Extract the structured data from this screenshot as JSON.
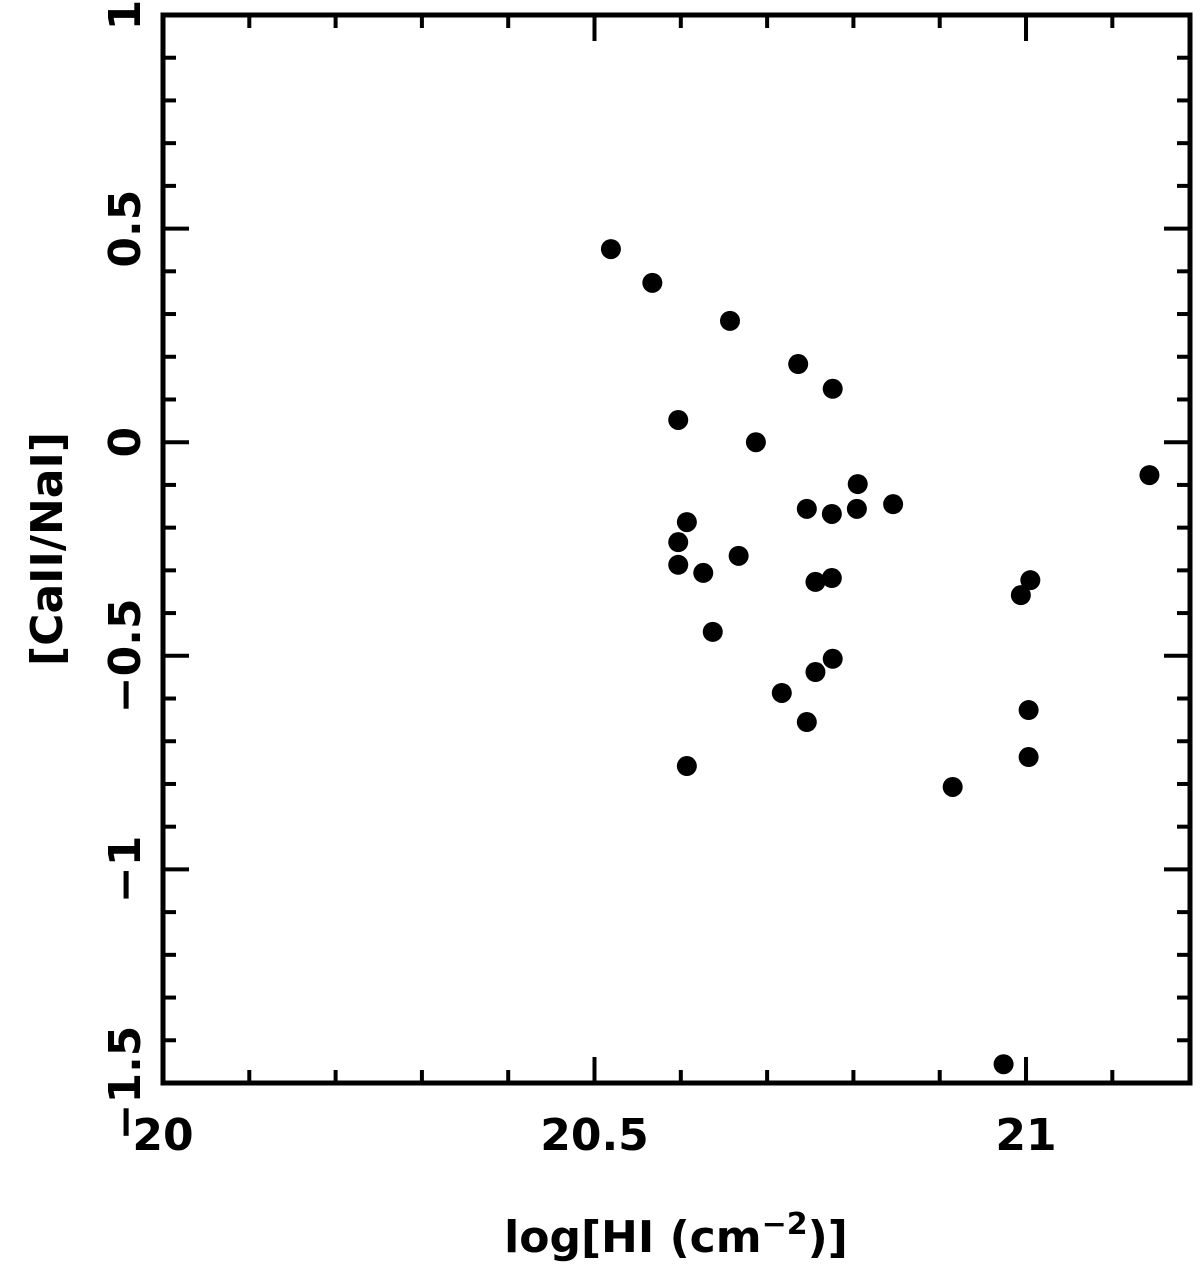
{
  "chart_data": {
    "type": "scatter",
    "xlabel": [
      "log[HI (cm",
      "−2",
      ")]"
    ],
    "ylabel": "[CaII/NaI]",
    "color": "#000000",
    "x": [
      20.519,
      20.567,
      20.657,
      20.736,
      20.776,
      20.597,
      20.687,
      20.805,
      21.143,
      20.746,
      20.775,
      20.804,
      20.846,
      20.607,
      20.597,
      20.597,
      20.667,
      20.626,
      20.756,
      20.775,
      21.005,
      20.994,
      20.637,
      20.776,
      20.756,
      20.717,
      20.746,
      21.003,
      21.003,
      20.607,
      20.915,
      20.974
    ],
    "values": [
      0.452,
      0.373,
      0.284,
      0.183,
      0.125,
      0.052,
      0,
      -0.098,
      -0.077,
      -0.156,
      -0.168,
      -0.156,
      -0.145,
      -0.187,
      -0.234,
      -0.287,
      -0.266,
      -0.306,
      -0.327,
      -0.318,
      -0.323,
      -0.358,
      -0.444,
      -0.507,
      -0.538,
      -0.587,
      -0.655,
      -0.627,
      -0.737,
      -0.758,
      -0.807,
      -1.456
    ],
    "xlim": [
      20,
      21.19
    ],
    "ylim": [
      -1.5,
      1
    ],
    "xticks": [
      20,
      20.5,
      21
    ],
    "yticks": [
      1,
      0.5,
      0,
      {
        "value": -0.5,
        "label": "−0.5"
      },
      {
        "value": -1,
        "label": "−1"
      },
      {
        "value": -1.5,
        "label": "−1.5"
      }
    ],
    "xminorticks": [
      20.1,
      20.2,
      20.3,
      20.4,
      20.6,
      20.7,
      20.8,
      20.9,
      21.1
    ],
    "yminorticks": [
      0.9,
      0.8,
      0.7,
      0.6,
      0.4,
      0.3,
      0.2,
      0.1,
      -0.1,
      -0.2,
      -0.3,
      -0.4,
      -0.6,
      -0.7,
      -0.8,
      -0.9,
      -1.1,
      -1.2,
      -1.3,
      -1.4
    ]
  }
}
